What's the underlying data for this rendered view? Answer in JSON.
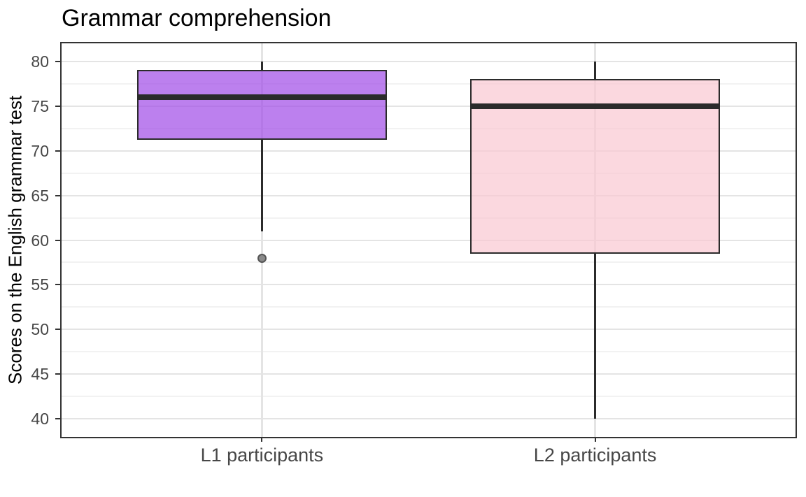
{
  "chart_data": {
    "type": "boxplot",
    "title": "Grammar comprehension",
    "xlabel": "",
    "ylabel": "Scores on the English grammar test",
    "categories": [
      "L1 participants",
      "L2 participants"
    ],
    "series": [
      {
        "name": "L1 participants",
        "whisker_low": 61,
        "q1": 71.25,
        "median": 76,
        "q3": 79,
        "whisker_high": 80,
        "outliers": [
          58
        ],
        "fill": "#BC80EE"
      },
      {
        "name": "L2 participants",
        "whisker_low": 40,
        "q1": 58.5,
        "median": 75,
        "q3": 78,
        "whisker_high": 80,
        "outliers": [],
        "fill": "#FBD8DF"
      }
    ],
    "ylim": [
      38,
      82
    ],
    "yticks": [
      40,
      45,
      50,
      55,
      60,
      65,
      70,
      75,
      80
    ],
    "yticks_minor": [
      42.5,
      47.5,
      52.5,
      57.5,
      62.5,
      67.5,
      72.5,
      77.5
    ],
    "grid": true,
    "legend": false
  },
  "style": {
    "box_alpha": 0.7,
    "stroke": "#2B2B2B",
    "grid_major": "#E4E4E4",
    "grid_minor": "#F2F2F2",
    "panel_border": "#333333",
    "tick_color": "#333333",
    "tick_label_color": "#474747",
    "title_color": "#000000",
    "outlier_fill": "#8A8A8A",
    "outlier_stroke": "#555555",
    "background": "#FFFFFF"
  }
}
